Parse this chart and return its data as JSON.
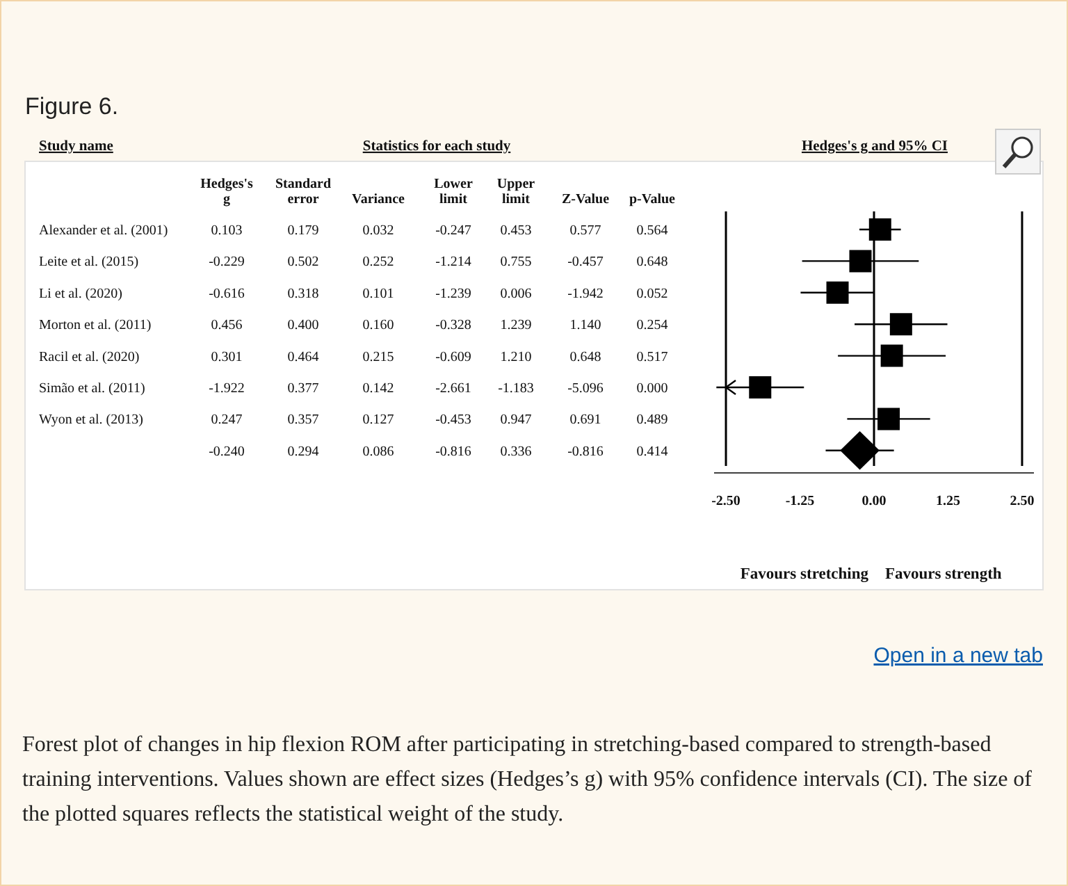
{
  "chart_data": [
    {
      "type": "other",
      "title": "Figure 6.",
      "annotations": [
        "Open in a new tab",
        "Forest plot of changes in hip flexion ROM after participating in stretching-based compared to strength-based training interventions. Values shown are effect sizes (Hedges’s g) with 95% confidence intervals (CI). The size of the plotted squares reflects the statistical weight of the study."
      ]
    },
    {
      "type": "heatmap",
      "title": "Statistics for each study",
      "ylabel": "Study name",
      "categories": [
        "Hedges's g",
        "Standard error",
        "Variance",
        "Lower limit",
        "Upper limit",
        "Z-Value",
        "p-Value"
      ],
      "y_categories": [
        "Alexander et al. (2001)",
        "Leite et al. (2015)",
        "Li et al. (2020)",
        "Morton et al. (2011)",
        "Racil et al. (2020)",
        "Simão et al. (2011)",
        "Wyon et al. (2013)",
        null
      ],
      "cells": [
        [
          0.103,
          0.179,
          0.032,
          -0.247,
          0.453,
          0.577,
          0.564
        ],
        [
          -0.229,
          0.502,
          0.252,
          -1.214,
          0.755,
          -0.457,
          0.648
        ],
        [
          -0.616,
          0.318,
          0.101,
          -1.239,
          0.006,
          -1.942,
          0.052
        ],
        [
          0.456,
          0.4,
          0.16,
          -0.328,
          1.239,
          1.14,
          0.254
        ],
        [
          0.301,
          0.464,
          0.215,
          -0.609,
          1.21,
          0.648,
          0.517
        ],
        [
          -1.922,
          0.377,
          0.142,
          -2.661,
          -1.183,
          -5.096,
          0.0
        ],
        [
          0.247,
          0.357,
          0.127,
          -0.453,
          0.947,
          0.691,
          0.489
        ],
        [
          -0.24,
          0.294,
          0.086,
          -0.816,
          0.336,
          -0.816,
          0.414
        ]
      ],
      "cell_labels": [
        [
          "0.103",
          "0.179",
          "0.032",
          "-0.247",
          "0.453",
          "0.577",
          "0.564"
        ],
        [
          "-0.229",
          "0.502",
          "0.252",
          "-1.214",
          "0.755",
          "-0.457",
          "0.648"
        ],
        [
          "-0.616",
          "0.318",
          "0.101",
          "-1.239",
          "0.006",
          "-1.942",
          "0.052"
        ],
        [
          "0.456",
          "0.400",
          "0.160",
          "-0.328",
          "1.239",
          "1.140",
          "0.254"
        ],
        [
          "0.301",
          "0.464",
          "0.215",
          "-0.609",
          "1.210",
          "0.648",
          "0.517"
        ],
        [
          "-1.922",
          "0.377",
          "0.142",
          "-2.661",
          "-1.183",
          "-5.096",
          "0.000"
        ],
        [
          "0.247",
          "0.357",
          "0.127",
          "-0.453",
          "0.947",
          "0.691",
          "0.489"
        ],
        [
          "-0.240",
          "0.294",
          "0.086",
          "-0.816",
          "0.336",
          "-0.816",
          "0.414"
        ]
      ]
    },
    {
      "type": "scatter",
      "title": "Hedges's g and 95% CI",
      "orientation": "horizontal",
      "tick_labels": "x",
      "categories": [
        null,
        null,
        null,
        null,
        null,
        null,
        null,
        null
      ],
      "series": [
        {
          "color": "#000000",
          "marker": "square",
          "values": [
            0.103,
            -0.229,
            -0.616,
            0.456,
            0.301,
            -1.922,
            0.247,
            null
          ],
          "errors": [
            [
              -0.247,
              0.453
            ],
            [
              -1.214,
              0.755
            ],
            [
              -1.239,
              0.006
            ],
            [
              -0.328,
              1.239
            ],
            [
              -0.609,
              1.21
            ],
            [
              -2.661,
              -1.183
            ],
            [
              -0.453,
              0.947
            ],
            null
          ]
        },
        {
          "color": "#000000",
          "marker": "diamond",
          "values": [
            null,
            null,
            null,
            null,
            null,
            null,
            null,
            -0.24
          ],
          "errors": [
            null,
            null,
            null,
            null,
            null,
            null,
            null,
            [
              -0.816,
              0.336
            ]
          ]
        }
      ],
      "xlim": [
        -2.7,
        2.7
      ],
      "xticks": [
        {
          "value": -2.5,
          "label": "-2.50"
        },
        {
          "value": -1.25,
          "label": "-1.25"
        },
        {
          "value": 0,
          "label": "0.00"
        },
        {
          "value": 1.25,
          "label": "1.25"
        },
        {
          "value": 2.5,
          "label": "2.50"
        }
      ],
      "ref_lines": [
        {
          "axis": "x",
          "value": -2.5
        },
        {
          "axis": "x",
          "value": 0
        },
        {
          "axis": "x",
          "value": 2.5
        }
      ],
      "annotations": [
        "Favours stretching",
        "Favours strength"
      ]
    }
  ]
}
